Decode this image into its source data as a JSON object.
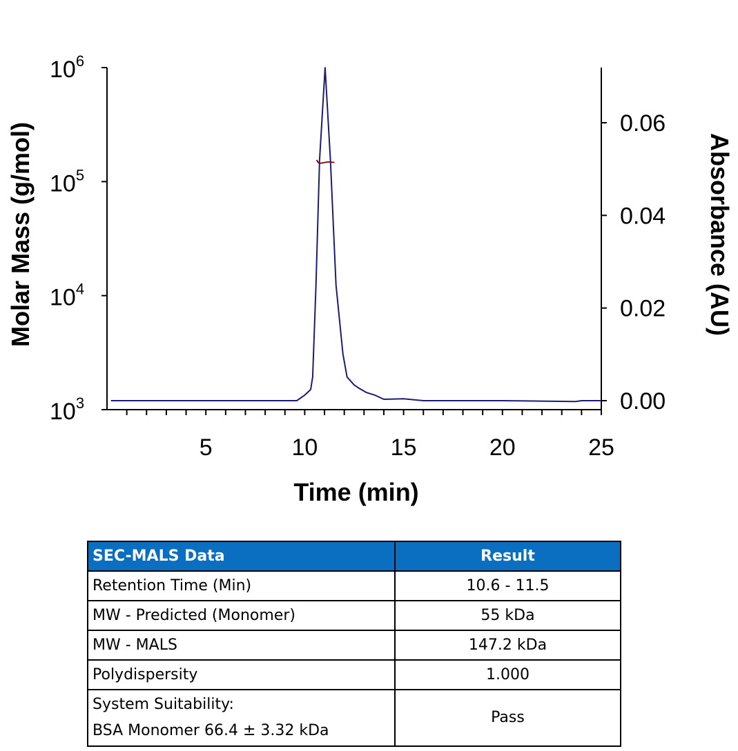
{
  "chart_data": {
    "type": "line",
    "title": "",
    "xlabel": "Time (min)",
    "ylabel_left": "Molar Mass (g/mol)",
    "ylabel_right": "Absorbance (AU)",
    "xlim": [
      0,
      25
    ],
    "x_ticks": [
      "5",
      "10",
      "15",
      "20",
      "25"
    ],
    "x_tick_values": [
      5,
      10,
      15,
      20,
      25
    ],
    "ylim_left": [
      1000,
      1000000
    ],
    "y_left_scale": "log",
    "y_left_ticks": [
      {
        "base": "10",
        "exp": "3"
      },
      {
        "base": "10",
        "exp": "4"
      },
      {
        "base": "10",
        "exp": "5"
      },
      {
        "base": "10",
        "exp": "6"
      }
    ],
    "ylim_right": [
      0,
      0.072
    ],
    "y_right_ticks": [
      "0.00",
      "0.02",
      "0.04",
      "0.06"
    ],
    "y_right_tick_values": [
      0,
      0.02,
      0.04,
      0.06
    ],
    "grid": false,
    "series": [
      {
        "axis": "right",
        "color": "#1a1a7a",
        "x": [
          0.2,
          9.6,
          10.0,
          10.3,
          10.4,
          10.57,
          10.75,
          11.03,
          11.3,
          11.58,
          11.93,
          12.14,
          12.5,
          12.74,
          13.1,
          13.54,
          14.0,
          15.0,
          16.0,
          20.0,
          23.7,
          24.0,
          25.0
        ],
        "y": [
          0.0,
          0.0,
          0.0012,
          0.0024,
          0.0051,
          0.025,
          0.052,
          0.0719,
          0.052,
          0.025,
          0.0101,
          0.0051,
          0.0034,
          0.0027,
          0.0018,
          0.0012,
          0.0003,
          0.0004,
          0.0,
          0.0,
          -0.0002,
          0.0,
          0.0
        ]
      },
      {
        "axis": "left",
        "color": "#7a1010",
        "x": [
          10.6,
          10.7,
          10.8,
          10.9,
          11.0,
          11.1,
          11.2,
          11.3,
          11.4,
          11.5
        ],
        "y": [
          155000,
          146000,
          145000,
          146000,
          147000,
          148000,
          149000,
          148000,
          148000,
          147000
        ]
      }
    ]
  },
  "table": {
    "headers": [
      "SEC-MALS Data",
      "Result"
    ],
    "rows": [
      {
        "label": "Retention Time (Min)",
        "value": "10.6 - 11.5"
      },
      {
        "label": "MW - Predicted (Monomer)",
        "value": "55 kDa"
      },
      {
        "label": "MW - MALS",
        "value": "147.2 kDa"
      },
      {
        "label": "Polydispersity",
        "value": "1.000"
      },
      {
        "label": "System Suitability:",
        "label2": "BSA Monomer 66.4 ± 3.32 kDa",
        "value": "Pass"
      }
    ],
    "header_color": "#0a6fc0"
  }
}
